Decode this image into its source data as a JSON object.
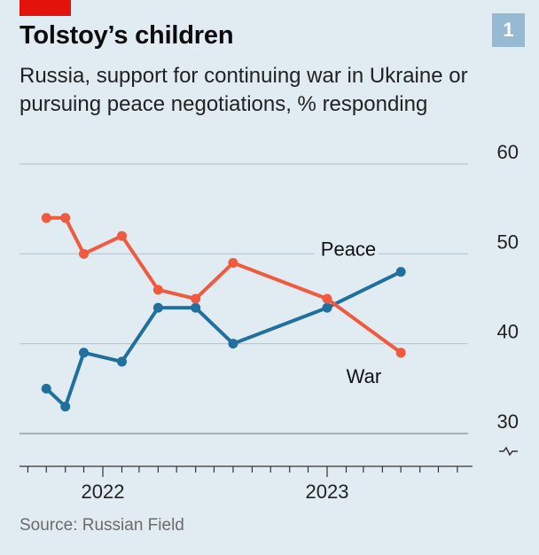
{
  "header": {
    "title": "Tolstoy’s children",
    "subtitle": "Russia, support for continuing war in Ukraine or pursuing peace negotiations, % responding",
    "badge": "1"
  },
  "source": "Source: Russian Field",
  "chart_data": {
    "type": "line",
    "title": "Tolstoy’s children",
    "subtitle": "Russia, support for continuing war in Ukraine or pursuing peace negotiations, % responding",
    "ylim": [
      30,
      60
    ],
    "yticks": [
      30,
      40,
      50,
      60
    ],
    "y_axis_break": true,
    "y_axis_side": "right",
    "grid": "horizontal",
    "x_ticks": [
      "2022",
      "2023"
    ],
    "series": [
      {
        "name": "Peace",
        "color": "#1f6f9f",
        "points": [
          {
            "x": "2021-10-01",
            "y": 35
          },
          {
            "x": "2021-11-01",
            "y": 33
          },
          {
            "x": "2021-12-01",
            "y": 39
          },
          {
            "x": "2022-02-01",
            "y": 38
          },
          {
            "x": "2022-04-01",
            "y": 44
          },
          {
            "x": "2022-06-01",
            "y": 44
          },
          {
            "x": "2022-08-01",
            "y": 40
          },
          {
            "x": "2023-01-01",
            "y": 44
          },
          {
            "x": "2023-05-01",
            "y": 48
          }
        ]
      },
      {
        "name": "War",
        "color": "#f15a3d",
        "points": [
          {
            "x": "2021-10-01",
            "y": 54
          },
          {
            "x": "2021-11-01",
            "y": 54
          },
          {
            "x": "2021-12-01",
            "y": 50
          },
          {
            "x": "2022-02-01",
            "y": 52
          },
          {
            "x": "2022-04-01",
            "y": 46
          },
          {
            "x": "2022-06-01",
            "y": 45
          },
          {
            "x": "2022-08-01",
            "y": 49
          },
          {
            "x": "2023-01-01",
            "y": 45
          },
          {
            "x": "2023-05-01",
            "y": 39
          }
        ]
      }
    ]
  }
}
